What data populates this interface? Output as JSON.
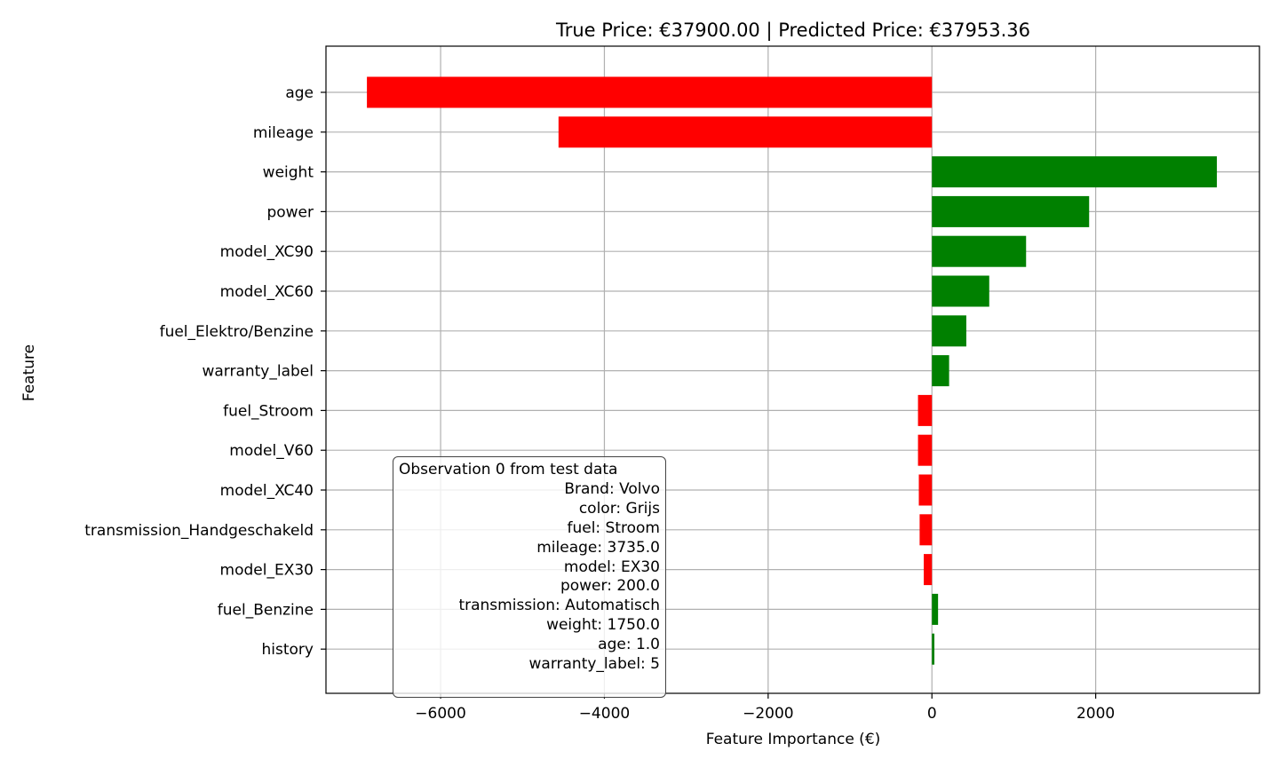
{
  "chart_data": {
    "type": "bar",
    "orientation": "horizontal",
    "title": "True Price: €37900.00 | Predicted Price: €37953.36",
    "xlabel": "Feature Importance (€)",
    "ylabel": "Feature",
    "xlim": [
      -7400,
      4000
    ],
    "xticks": [
      -6000,
      -4000,
      -2000,
      0,
      2000
    ],
    "xtick_labels": [
      "−6000",
      "−4000",
      "−2000",
      "0",
      "2000"
    ],
    "grid": true,
    "categories": [
      "age",
      "mileage",
      "weight",
      "power",
      "model_XC90",
      "model_XC60",
      "fuel_Elektro/Benzine",
      "warranty_label",
      "fuel_Stroom",
      "model_V60",
      "model_XC40",
      "transmission_Handgeschakeld",
      "model_EX30",
      "fuel_Benzine",
      "history"
    ],
    "values": [
      -6900,
      -4560,
      3480,
      1920,
      1150,
      700,
      420,
      210,
      -170,
      -170,
      -160,
      -150,
      -100,
      75,
      30
    ],
    "colors": {
      "positive": "#008000",
      "negative": "#ff0000"
    },
    "annotation": {
      "placement": "bottom-left",
      "lines": [
        "Observation 0 from test data",
        "Brand: Volvo",
        "color: Grijs",
        "fuel: Stroom",
        "mileage: 3735.0",
        "model: EX30",
        "power: 200.0",
        "transmission: Automatisch",
        "weight: 1750.0",
        "age: 1.0",
        "warranty_label: 5"
      ]
    }
  }
}
